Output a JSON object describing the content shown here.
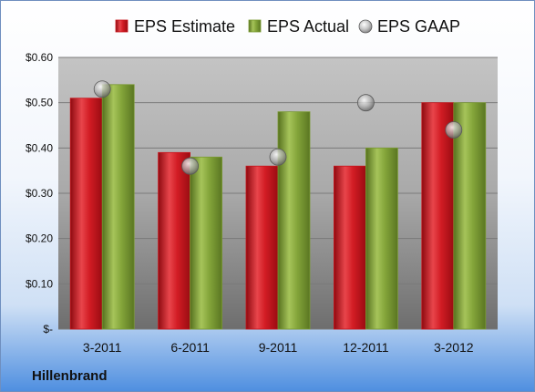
{
  "brand": "Hillenbrand",
  "colors": {
    "estimate": "#c8141c",
    "actual": "#7a9a32",
    "gaap": "#b0b0b0"
  },
  "chart_data": {
    "type": "bar",
    "title": "",
    "xlabel": "",
    "ylabel": "",
    "ylim": [
      0,
      0.6
    ],
    "yticks": [
      {
        "value": 0,
        "label": "$-"
      },
      {
        "value": 0.1,
        "label": "$0.10"
      },
      {
        "value": 0.2,
        "label": "$0.20"
      },
      {
        "value": 0.3,
        "label": "$0.30"
      },
      {
        "value": 0.4,
        "label": "$0.40"
      },
      {
        "value": 0.5,
        "label": "$0.50"
      },
      {
        "value": 0.6,
        "label": "$0.60"
      }
    ],
    "legend_position": "top",
    "grid": true,
    "categories": [
      "3-2011",
      "6-2011",
      "9-2011",
      "12-2011",
      "3-2012"
    ],
    "series": [
      {
        "name": "EPS Estimate",
        "kind": "bar",
        "values": [
          0.51,
          0.39,
          0.36,
          0.36,
          0.5
        ]
      },
      {
        "name": "EPS Actual",
        "kind": "bar",
        "values": [
          0.54,
          0.38,
          0.48,
          0.4,
          0.5
        ]
      },
      {
        "name": "EPS GAAP",
        "kind": "marker",
        "values": [
          0.53,
          0.36,
          0.38,
          0.5,
          0.44
        ]
      }
    ]
  }
}
